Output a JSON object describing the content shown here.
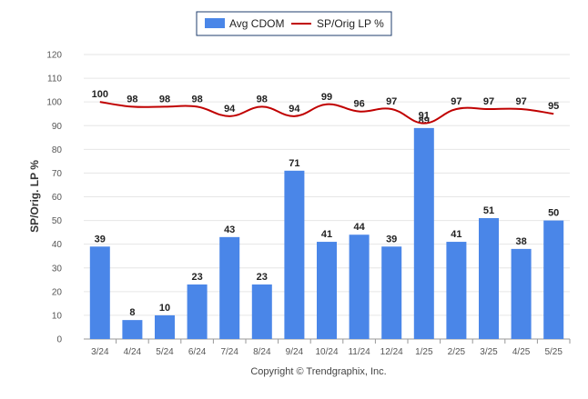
{
  "chart_data": {
    "type": "bar",
    "categories": [
      "3/24",
      "4/24",
      "5/24",
      "6/24",
      "7/24",
      "8/24",
      "9/24",
      "10/24",
      "11/24",
      "12/24",
      "1/25",
      "2/25",
      "3/25",
      "4/25",
      "5/25"
    ],
    "series": [
      {
        "name": "Avg CDOM",
        "type": "bar",
        "color": "#4a86e8",
        "values": [
          39,
          8,
          10,
          23,
          43,
          23,
          71,
          41,
          44,
          39,
          89,
          41,
          51,
          38,
          50
        ]
      },
      {
        "name": "SP/Orig LP %",
        "type": "line",
        "color": "#c00000",
        "values": [
          100,
          98,
          98,
          98,
          94,
          98,
          94,
          99,
          96,
          97,
          91,
          97,
          97,
          97,
          95
        ]
      }
    ],
    "ylabel": "SP/Orig. LP %",
    "ylim": [
      0,
      120
    ],
    "yticks": [
      0,
      10,
      20,
      30,
      40,
      50,
      60,
      70,
      80,
      90,
      100,
      110,
      120
    ],
    "grid": true,
    "legend_position": "top-center"
  },
  "footer": {
    "copyright": "Copyright © Trendgraphix, Inc."
  }
}
